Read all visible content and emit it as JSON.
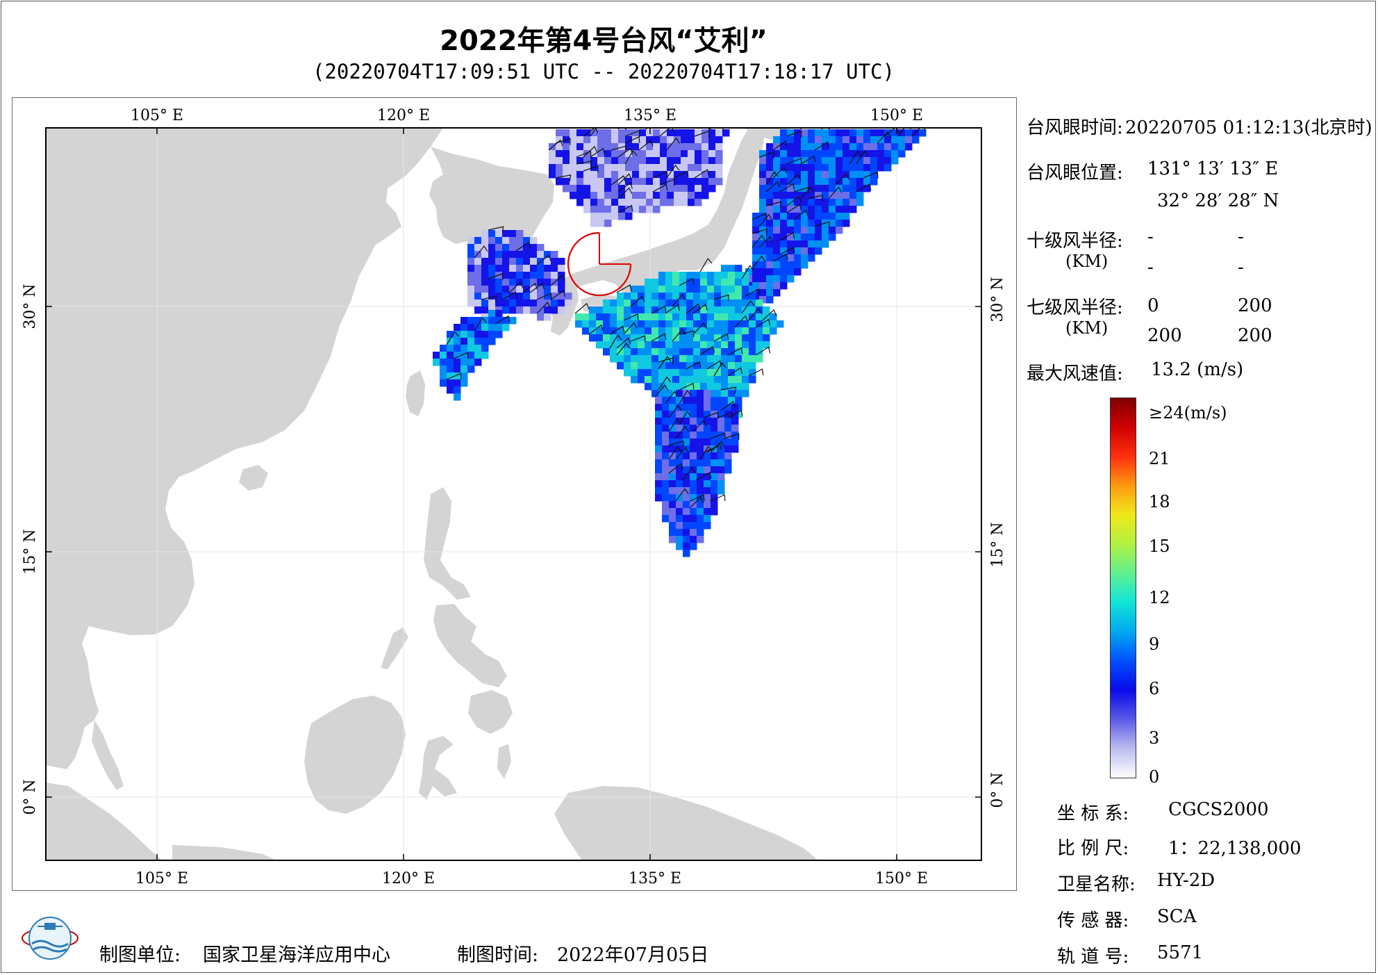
{
  "title": "2022年第4号台风“艾利”",
  "subtitle": "(20220704T17:09:51 UTC -- 20220704T17:18:17 UTC)",
  "map": {
    "lon_labels": [
      "105° E",
      "120° E",
      "135° E",
      "150° E"
    ],
    "lat_labels": [
      "30° N",
      "15° N",
      "0° N"
    ],
    "land_color": "#d4d4d4",
    "circle_color": "#e00000"
  },
  "info": {
    "eye_time_label": "台风眼时间:",
    "eye_time_value": "20220705 01:12:13(北京时)",
    "eye_pos_label": "台风眼位置:",
    "eye_lon": "131° 13′ 13″ E",
    "eye_lat": "32° 28′ 28″ N",
    "r10_label": "十级风半径:",
    "r10_unit": "(KM)",
    "r10_values": [
      "-",
      "-",
      "-",
      "-"
    ],
    "r7_label": "七级风半径:",
    "r7_unit": "(KM)",
    "r7_values": [
      "0",
      "200",
      "200",
      "200"
    ],
    "max_wind_label": "最大风速值:",
    "max_wind_value": "13.2  (m/s)"
  },
  "colorbar": {
    "labels": [
      "≥24(m/s)",
      "21",
      "18",
      "15",
      "12",
      "9",
      "6",
      "3",
      "0"
    ],
    "stops": [
      "#ffffff",
      "#bcbcf0",
      "#5a5ae8",
      "#0a0ae8",
      "#0050ff",
      "#00a8f0",
      "#10e4d8",
      "#60f090",
      "#b0f040",
      "#f0e818",
      "#ff9a10",
      "#ff3010",
      "#d00000",
      "#800000"
    ]
  },
  "meta": {
    "crs_label": "坐 标 系:",
    "crs_value": "CGCS2000",
    "scale_label": "比 例 尺:",
    "scale_value": "1：22,138,000",
    "sat_label": "卫星名称:",
    "sat_value": "HY-2D",
    "sensor_label": "传 感 器:",
    "sensor_value": "SCA",
    "orbit_label": "轨 道 号:",
    "orbit_value": "5571"
  },
  "footer": {
    "org_label": "制图单位:",
    "org_value": "国家卫星海洋应用中心",
    "date_label": "制图时间:",
    "date_value": "2022年07月05日"
  }
}
